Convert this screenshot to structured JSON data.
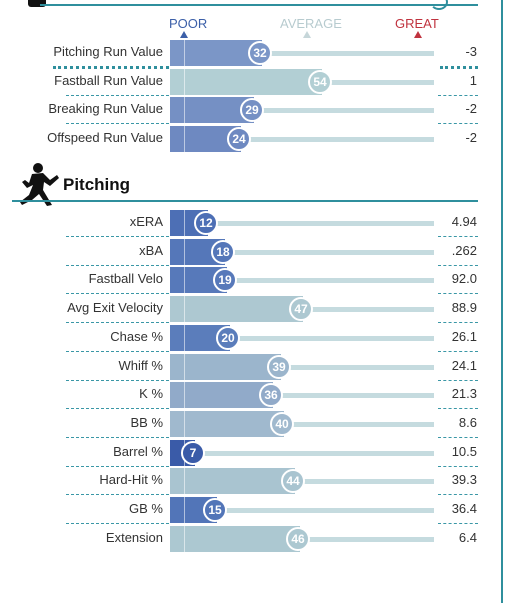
{
  "scale": {
    "poor": "POOR",
    "average": "AVERAGE",
    "great": "GREAT"
  },
  "colors": {
    "poor": "#3b5fa8",
    "average": "#b7cbcf",
    "great": "#c0333f",
    "accent": "#2f8f9d",
    "track": "#c5dbdf"
  },
  "run_values": [
    {
      "label": "Pitching Run Value",
      "percentile": 32,
      "value": "-3",
      "color": "#7b96c7"
    },
    {
      "label": "Fastball Run Value",
      "percentile": 54,
      "value": "1",
      "color": "#b2cfd4"
    },
    {
      "label": "Breaking Run Value",
      "percentile": 29,
      "value": "-2",
      "color": "#7590c4"
    },
    {
      "label": "Offspeed Run Value",
      "percentile": 24,
      "value": "-2",
      "color": "#6e89c1"
    }
  ],
  "pitching": {
    "title": "Pitching",
    "icon": "pitcher-icon",
    "rows": [
      {
        "label": "xERA",
        "percentile": 12,
        "value": "4.94",
        "color": "#4d6fb5"
      },
      {
        "label": "xBA",
        "percentile": 18,
        "value": ".262",
        "color": "#5577b9"
      },
      {
        "label": "Fastball Velo",
        "percentile": 19,
        "value": "92.0",
        "color": "#5779ba"
      },
      {
        "label": "Avg Exit Velocity",
        "percentile": 47,
        "value": "88.9",
        "color": "#adc8d1"
      },
      {
        "label": "Chase %",
        "percentile": 20,
        "value": "26.1",
        "color": "#5b7dbb"
      },
      {
        "label": "Whiff %",
        "percentile": 39,
        "value": "24.1",
        "color": "#9bb5cc"
      },
      {
        "label": "K %",
        "percentile": 36,
        "value": "21.3",
        "color": "#91aac9"
      },
      {
        "label": "BB %",
        "percentile": 40,
        "value": "8.6",
        "color": "#a0b9ce"
      },
      {
        "label": "Barrel %",
        "percentile": 7,
        "value": "10.5",
        "color": "#3a5ba8"
      },
      {
        "label": "Hard-Hit %",
        "percentile": 44,
        "value": "39.3",
        "color": "#a9c4d0"
      },
      {
        "label": "GB %",
        "percentile": 15,
        "value": "36.4",
        "color": "#5275b8"
      },
      {
        "label": "Extension",
        "percentile": 46,
        "value": "6.4",
        "color": "#acc8d1"
      }
    ]
  }
}
